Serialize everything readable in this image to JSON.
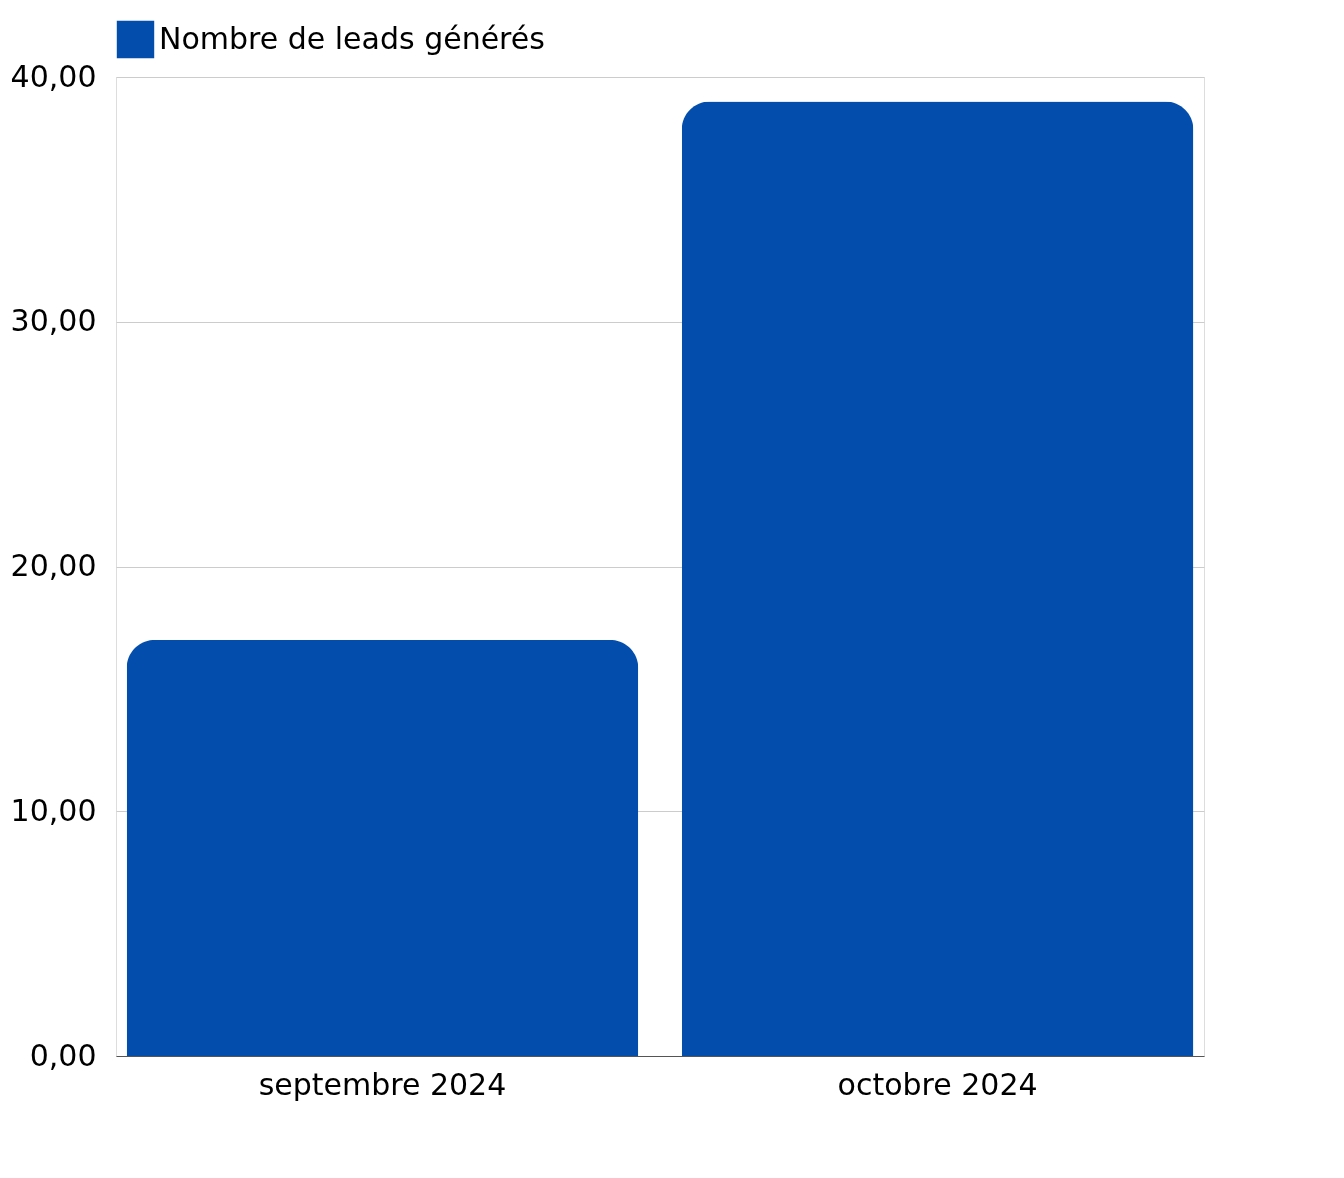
{
  "chart_data": {
    "type": "bar",
    "categories": [
      "septembre 2024",
      "octobre 2024"
    ],
    "series": [
      {
        "name": "Nombre de leads générés",
        "color": "#034ead",
        "values": [
          17,
          39
        ]
      }
    ],
    "ylim": [
      0,
      40
    ],
    "yticks": [
      {
        "value": 0,
        "label": "0,00"
      },
      {
        "value": 10,
        "label": "10,00"
      },
      {
        "value": 20,
        "label": "20,00"
      },
      {
        "value": 30,
        "label": "30,00"
      },
      {
        "value": 40,
        "label": "40,00"
      }
    ],
    "grid": "y",
    "legend": "top"
  }
}
